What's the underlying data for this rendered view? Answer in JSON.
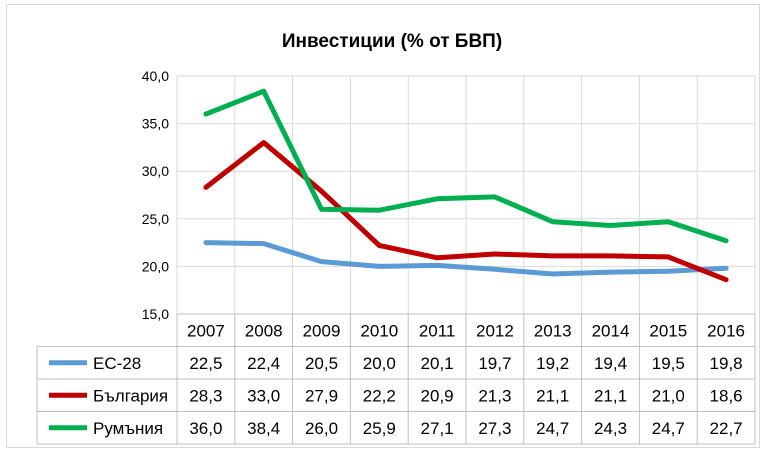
{
  "chart_data": {
    "type": "line",
    "title": "Инвестиции (% от БВП)",
    "categories": [
      "2007",
      "2008",
      "2009",
      "2010",
      "2011",
      "2012",
      "2013",
      "2014",
      "2015",
      "2016"
    ],
    "series": [
      {
        "name": "ЕС-28",
        "color": "#5b9bd5",
        "values": [
          22.5,
          22.4,
          20.5,
          20.0,
          20.1,
          19.7,
          19.2,
          19.4,
          19.5,
          19.8
        ],
        "labels": [
          "22,5",
          "22,4",
          "20,5",
          "20,0",
          "20,1",
          "19,7",
          "19,2",
          "19,4",
          "19,5",
          "19,8"
        ]
      },
      {
        "name": "България",
        "color": "#c00000",
        "values": [
          28.3,
          33.0,
          27.9,
          22.2,
          20.9,
          21.3,
          21.1,
          21.1,
          21.0,
          18.6
        ],
        "labels": [
          "28,3",
          "33,0",
          "27,9",
          "22,2",
          "20,9",
          "21,3",
          "21,1",
          "21,1",
          "21,0",
          "18,6"
        ]
      },
      {
        "name": "Румъния",
        "color": "#00b050",
        "values": [
          36.0,
          38.4,
          26.0,
          25.9,
          27.1,
          27.3,
          24.7,
          24.3,
          24.7,
          22.7
        ],
        "labels": [
          "36,0",
          "38,4",
          "26,0",
          "25,9",
          "27,1",
          "27,3",
          "24,7",
          "24,3",
          "24,7",
          "22,7"
        ]
      }
    ],
    "yticks": [
      "15,0",
      "20,0",
      "25,0",
      "30,0",
      "35,0",
      "40,0"
    ],
    "ylim": [
      15,
      40
    ],
    "grid": true,
    "legend": "data-table"
  }
}
